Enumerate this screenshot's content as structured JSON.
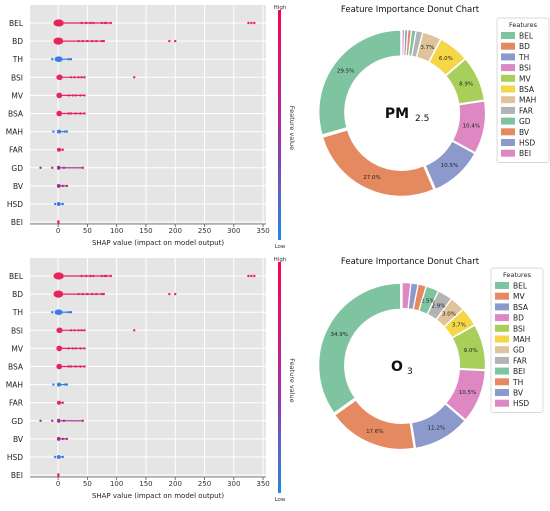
{
  "colors": {
    "plot_bg": "#e5e5e5",
    "grid": "#ffffff",
    "shap_high": "#e8245a",
    "shap_low": "#3a7be8",
    "shap_mid": "#a02a8e"
  },
  "panels": [
    {
      "shap": {
        "type": "scatter",
        "xlabel": "SHAP value (impact on model output)",
        "x_ticks": [
          "0",
          "50",
          "100",
          "150",
          "200",
          "250",
          "300",
          "350"
        ],
        "xlim": [
          -48,
          355
        ],
        "colorbar_label": "Feature value",
        "colorbar_high": "High",
        "colorbar_low": "Low",
        "rows": [
          {
            "feature": "BEL",
            "main": [
              -8,
              10
            ],
            "color": "high",
            "outliers": [
              40,
              48,
              55,
              60,
              75,
              80,
              82,
              90,
              325,
              330,
              335
            ]
          },
          {
            "feature": "BD",
            "main": [
              -8,
              9
            ],
            "color": "high",
            "outliers": [
              35,
              42,
              50,
              58,
              65,
              75,
              78,
              190,
              200
            ]
          },
          {
            "feature": "TH",
            "main": [
              -6,
              8
            ],
            "color": "low",
            "outliers": [
              -10,
              18,
              22
            ]
          },
          {
            "feature": "BSI",
            "main": [
              -3,
              8
            ],
            "color": "high",
            "outliers": [
              22,
              28,
              35,
              40,
              45,
              130
            ]
          },
          {
            "feature": "MV",
            "main": [
              -3,
              7
            ],
            "color": "high",
            "outliers": [
              18,
              25,
              30,
              38,
              45
            ]
          },
          {
            "feature": "BSA",
            "main": [
              -3,
              7
            ],
            "color": "high",
            "outliers": [
              18,
              22,
              30,
              38,
              45
            ]
          },
          {
            "feature": "MAH",
            "main": [
              -2,
              5
            ],
            "color": "low",
            "outliers": [
              -8,
              12,
              15
            ]
          },
          {
            "feature": "FAR",
            "main": [
              -2,
              5
            ],
            "color": "high",
            "outliers": [
              8
            ]
          },
          {
            "feature": "GD",
            "main": [
              -2,
              4
            ],
            "color": "mid",
            "outliers": [
              -30,
              -10,
              10,
              42
            ]
          },
          {
            "feature": "BV",
            "main": [
              -2,
              4
            ],
            "color": "mid",
            "outliers": [
              8,
              15
            ]
          },
          {
            "feature": "HSD",
            "main": [
              -2,
              4
            ],
            "color": "low",
            "outliers": [
              -5,
              8
            ]
          },
          {
            "feature": "BEI",
            "main": [
              -1,
              2
            ],
            "color": "high",
            "outliers": []
          }
        ]
      },
      "donut": {
        "type": "pie",
        "title": "Feature Importance Donut Chart",
        "center_label": "PM",
        "center_sub": "2.5",
        "legend_title": "Features",
        "slices": [
          {
            "name": "BEL",
            "value": 29.5,
            "label": "29.5%",
            "color": "#7fc4a0"
          },
          {
            "name": "BD",
            "value": 27.0,
            "label": "27.0%",
            "color": "#e58a60"
          },
          {
            "name": "TH",
            "value": 10.5,
            "label": "10.5%",
            "color": "#8c9acb"
          },
          {
            "name": "BSI",
            "value": 10.4,
            "label": "10.4%",
            "color": "#dd88c3"
          },
          {
            "name": "MV",
            "value": 8.9,
            "label": "8.9%",
            "color": "#a8cf5a"
          },
          {
            "name": "BSA",
            "value": 6.0,
            "label": "6.0%",
            "color": "#f4d646"
          },
          {
            "name": "MAH",
            "value": 3.7,
            "label": "3.7%",
            "color": "#dfc39a"
          },
          {
            "name": "FAR",
            "value": 1.3,
            "label": "",
            "color": "#b3b3b3"
          },
          {
            "name": "GD",
            "value": 0.9,
            "label": "",
            "color": "#7fc4a0"
          },
          {
            "name": "BV",
            "value": 0.7,
            "label": "",
            "color": "#e58a60"
          },
          {
            "name": "HSD",
            "value": 0.6,
            "label": "",
            "color": "#8c9acb"
          },
          {
            "name": "BEI",
            "value": 0.5,
            "label": "",
            "color": "#dd88c3"
          }
        ]
      }
    },
    {
      "shap": {
        "type": "scatter",
        "xlabel": "SHAP value (impact on model output)",
        "x_ticks": [
          "0",
          "50",
          "100",
          "150",
          "200",
          "250",
          "300",
          "350"
        ],
        "xlim": [
          -48,
          355
        ],
        "colorbar_label": "Feature value",
        "colorbar_high": "High",
        "colorbar_low": "Low",
        "rows": [
          {
            "feature": "BEL",
            "main": [
              -8,
              10
            ],
            "color": "high",
            "outliers": [
              40,
              48,
              55,
              60,
              75,
              80,
              82,
              90,
              325,
              330,
              335
            ]
          },
          {
            "feature": "BD",
            "main": [
              -8,
              9
            ],
            "color": "high",
            "outliers": [
              35,
              42,
              50,
              58,
              65,
              75,
              78,
              190,
              200
            ]
          },
          {
            "feature": "TH",
            "main": [
              -6,
              8
            ],
            "color": "low",
            "outliers": [
              -10,
              18,
              22
            ]
          },
          {
            "feature": "BSI",
            "main": [
              -3,
              8
            ],
            "color": "high",
            "outliers": [
              22,
              28,
              35,
              40,
              45,
              130
            ]
          },
          {
            "feature": "MV",
            "main": [
              -3,
              7
            ],
            "color": "high",
            "outliers": [
              18,
              25,
              30,
              38,
              45
            ]
          },
          {
            "feature": "BSA",
            "main": [
              -3,
              7
            ],
            "color": "high",
            "outliers": [
              18,
              22,
              30,
              38,
              45
            ]
          },
          {
            "feature": "MAH",
            "main": [
              -2,
              5
            ],
            "color": "low",
            "outliers": [
              -8,
              12,
              15
            ]
          },
          {
            "feature": "FAR",
            "main": [
              -2,
              5
            ],
            "color": "high",
            "outliers": [
              8
            ]
          },
          {
            "feature": "GD",
            "main": [
              -2,
              4
            ],
            "color": "mid",
            "outliers": [
              -30,
              -10,
              10,
              42
            ]
          },
          {
            "feature": "BV",
            "main": [
              -2,
              4
            ],
            "color": "mid",
            "outliers": [
              8,
              15
            ]
          },
          {
            "feature": "HSD",
            "main": [
              -2,
              4
            ],
            "color": "low",
            "outliers": [
              -5,
              8
            ]
          },
          {
            "feature": "BEI",
            "main": [
              -1,
              2
            ],
            "color": "high",
            "outliers": []
          }
        ]
      },
      "donut": {
        "type": "pie",
        "title": "Feature Importance Donut Chart",
        "center_label": "O",
        "center_sub": "3",
        "legend_title": "Features",
        "slices": [
          {
            "name": "BEL",
            "value": 34.9,
            "label": "34.9%",
            "color": "#7fc4a0"
          },
          {
            "name": "MV",
            "value": 17.6,
            "label": "17.6%",
            "color": "#e58a60"
          },
          {
            "name": "BSA",
            "value": 11.2,
            "label": "11.2%",
            "color": "#8c9acb"
          },
          {
            "name": "BD",
            "value": 10.5,
            "label": "10.5%",
            "color": "#dd88c3"
          },
          {
            "name": "BSI",
            "value": 9.0,
            "label": "9.0%",
            "color": "#a8cf5a"
          },
          {
            "name": "MAH",
            "value": 3.7,
            "label": "3.7%",
            "color": "#f4d646"
          },
          {
            "name": "GD",
            "value": 3.0,
            "label": "3.0%",
            "color": "#dfc39a"
          },
          {
            "name": "FAR",
            "value": 2.9,
            "label": "2.9%",
            "color": "#b3b3b3"
          },
          {
            "name": "BEI",
            "value": 2.5,
            "label": "2.5%",
            "color": "#7fc4a0"
          },
          {
            "name": "TH",
            "value": 1.6,
            "label": "",
            "color": "#e58a60"
          },
          {
            "name": "BV",
            "value": 1.4,
            "label": "",
            "color": "#8c9acb"
          },
          {
            "name": "HSD",
            "value": 1.7,
            "label": "",
            "color": "#dd88c3"
          }
        ]
      }
    }
  ]
}
